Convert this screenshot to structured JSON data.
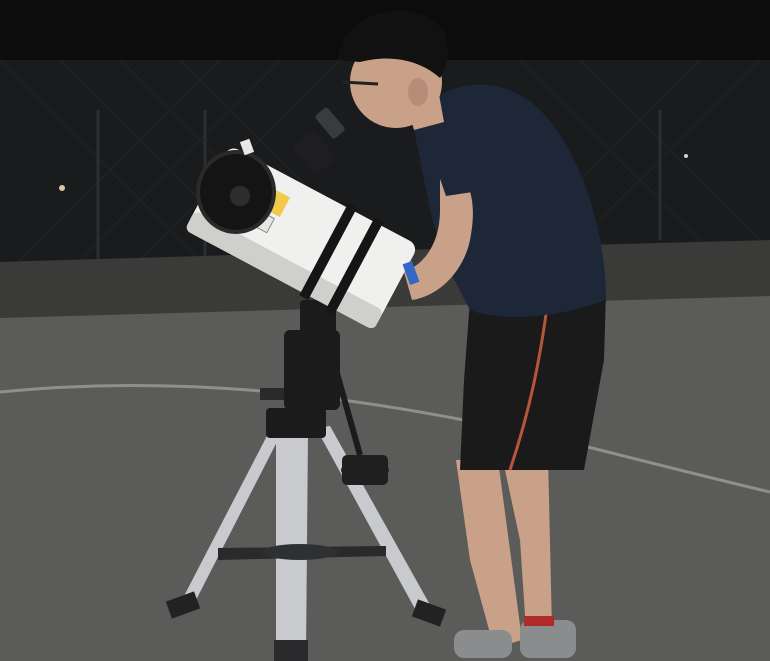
{
  "scene": {
    "subject": "person-observing-through-telescope",
    "setting": "outdoor-court-at-night",
    "colors": {
      "sky": "#0c0c0d",
      "fence": "#1a1b1d",
      "wall": "#3a3a38",
      "ground": "#5b5c5a",
      "court_line": "#8f8f8b",
      "tube": "#f0f0ee",
      "tube_shadow": "#cfcfcc",
      "mount": "#1b1b1c",
      "tripod_leg": "#c9cacd",
      "shirt": "#1d2738",
      "shorts": "#1a1a1b",
      "skin": "#c9a088",
      "hair": "#111111",
      "shoe": "#8a8c8e"
    }
  }
}
